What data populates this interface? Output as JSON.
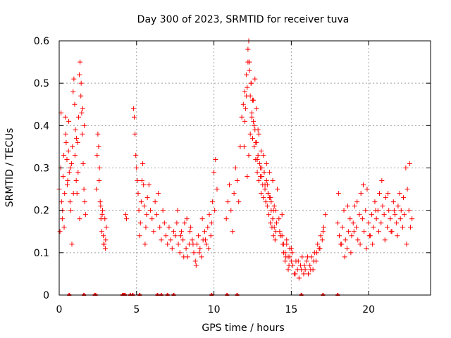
{
  "chart_data": {
    "type": "scatter",
    "title": "Day 300 of 2023, SRMTID for receiver tuva",
    "xlabel": "GPS time / hours",
    "ylabel": "SRMTID / TECUs",
    "xlim": [
      0,
      24
    ],
    "ylim": [
      0,
      0.6
    ],
    "x_ticks": [
      "0",
      "5",
      "10",
      "15",
      "20"
    ],
    "x_tick_values": [
      0,
      5,
      10,
      15,
      20
    ],
    "y_ticks": [
      "0",
      "0.1",
      "0.2",
      "0.3",
      "0.4",
      "0.5",
      "0.6"
    ],
    "y_tick_values": [
      0,
      0.1,
      0.2,
      0.3,
      0.4,
      0.5,
      0.6
    ],
    "grid": true,
    "marker": "plus",
    "color": "#ff0000",
    "series": [
      {
        "name": "SRMTID",
        "x": [
          0.0,
          0.1,
          0.15,
          0.2,
          0.25,
          0.3,
          0.35,
          0.4,
          0.45,
          0.5,
          0.55,
          0.6,
          0.65,
          0.7,
          0.75,
          0.8,
          0.85,
          0.9,
          0.95,
          1.0,
          1.05,
          1.1,
          1.15,
          1.2,
          1.25,
          1.3,
          1.35,
          1.4,
          1.45,
          1.5,
          1.55,
          1.6,
          1.65,
          1.7,
          0.05,
          0.12,
          0.22,
          0.32,
          0.42,
          0.52,
          0.62,
          0.72,
          0.82,
          0.92,
          1.02,
          1.12,
          1.22,
          1.32,
          1.42,
          1.52,
          1.62,
          2.4,
          2.5,
          2.55,
          2.6,
          2.65,
          2.7,
          2.75,
          2.8,
          2.85,
          2.9,
          2.95,
          3.0,
          3.05,
          2.45,
          2.58,
          2.68,
          2.78,
          2.88,
          2.98,
          4.3,
          4.35,
          4.8,
          4.85,
          4.9,
          4.95,
          5.0,
          5.05,
          5.1,
          5.15,
          5.2,
          5.25,
          5.3,
          5.35,
          5.4,
          5.45,
          5.5,
          5.55,
          5.6,
          5.65,
          5.7,
          5.8,
          5.9,
          6.0,
          6.1,
          6.2,
          6.3,
          6.4,
          6.5,
          6.6,
          6.7,
          6.8,
          6.9,
          7.0,
          7.1,
          7.2,
          7.3,
          7.4,
          7.5,
          7.6,
          7.7,
          7.8,
          7.9,
          8.0,
          8.1,
          8.2,
          8.3,
          8.4,
          8.5,
          8.6,
          8.7,
          8.8,
          8.9,
          9.0,
          9.1,
          9.2,
          9.3,
          9.4,
          9.5,
          9.6,
          9.7,
          9.8,
          9.9,
          10.0,
          10.1,
          10.2,
          7.65,
          7.85,
          8.05,
          8.25,
          8.45,
          8.65,
          8.85,
          9.05,
          9.25,
          9.45,
          9.65,
          9.85,
          10.05,
          10.8,
          10.9,
          11.0,
          11.1,
          11.2,
          11.3,
          11.4,
          11.5,
          11.6,
          11.7,
          11.8,
          11.9,
          12.0,
          12.1,
          12.2,
          12.3,
          12.4,
          12.5,
          12.6,
          12.7,
          12.8,
          12.9,
          13.0,
          13.1,
          13.2,
          13.3,
          13.4,
          13.5,
          13.6,
          13.7,
          13.8,
          13.9,
          14.0,
          14.1,
          14.2,
          14.3,
          14.4,
          14.5,
          14.6,
          14.7,
          14.8,
          14.9,
          15.0,
          11.95,
          12.0,
          12.05,
          12.1,
          12.15,
          12.2,
          12.25,
          12.3,
          12.35,
          12.4,
          12.45,
          12.5,
          12.55,
          12.6,
          12.65,
          12.7,
          12.75,
          12.8,
          12.85,
          12.9,
          12.95,
          13.0,
          13.05,
          13.1,
          13.15,
          13.2,
          13.25,
          13.3,
          13.35,
          13.4,
          13.45,
          13.5,
          13.55,
          13.6,
          13.65,
          13.7,
          13.75,
          13.8,
          13.85,
          13.9,
          13.95,
          14.0,
          12.15,
          12.25,
          12.35,
          12.45,
          12.55,
          12.65,
          12.75,
          12.85,
          13.05,
          13.25,
          13.45,
          13.65,
          13.85,
          14.05,
          14.25,
          14.4,
          14.5,
          14.6,
          14.7,
          14.8,
          14.9,
          15.0,
          15.1,
          15.2,
          15.3,
          15.4,
          15.5,
          15.6,
          15.7,
          15.8,
          15.9,
          16.0,
          16.1,
          16.2,
          16.3,
          16.4,
          16.5,
          16.6,
          16.7,
          16.8,
          16.9,
          17.0,
          17.1,
          17.2,
          14.45,
          14.65,
          14.85,
          15.05,
          15.25,
          15.45,
          15.65,
          15.85,
          16.05,
          16.25,
          16.45,
          16.65,
          16.85,
          17.05,
          18.0,
          18.1,
          18.2,
          18.3,
          18.4,
          18.5,
          18.6,
          18.7,
          18.8,
          18.9,
          19.0,
          19.1,
          19.2,
          19.3,
          19.4,
          19.5,
          19.6,
          19.7,
          19.8,
          19.9,
          20.0,
          20.1,
          20.2,
          20.3,
          20.4,
          20.5,
          20.6,
          20.7,
          20.8,
          20.9,
          21.0,
          21.1,
          21.2,
          21.3,
          21.4,
          21.5,
          21.6,
          21.7,
          21.8,
          21.9,
          22.0,
          22.1,
          22.2,
          22.3,
          22.4,
          22.5,
          22.6,
          22.7,
          22.8,
          18.05,
          18.25,
          18.45,
          18.65,
          18.85,
          19.05,
          19.25,
          19.45,
          19.65,
          19.85,
          20.05,
          20.25,
          20.45,
          20.65,
          20.85,
          21.05,
          21.25,
          21.45,
          21.65,
          21.85,
          22.05,
          22.25,
          22.45,
          22.65,
          0.65,
          1.6,
          2.3,
          2.35,
          4.1,
          4.15,
          4.2,
          4.25,
          4.6,
          4.75,
          5.2,
          6.35,
          6.6,
          7.0,
          7.4,
          9.85,
          10.85,
          11.5,
          15.65,
          17.05,
          18.0
        ],
        "y": [
          0.25,
          0.3,
          0.22,
          0.18,
          0.28,
          0.33,
          0.24,
          0.42,
          0.36,
          0.32,
          0.27,
          0.34,
          0.29,
          0.22,
          0.2,
          0.31,
          0.35,
          0.48,
          0.51,
          0.45,
          0.39,
          0.27,
          0.24,
          0.36,
          0.42,
          0.52,
          0.55,
          0.47,
          0.43,
          0.38,
          0.31,
          0.25,
          0.22,
          0.19,
          0.15,
          0.43,
          0.2,
          0.16,
          0.38,
          0.26,
          0.41,
          0.3,
          0.12,
          0.24,
          0.33,
          0.37,
          0.29,
          0.18,
          0.5,
          0.44,
          0.4,
          0.25,
          0.38,
          0.35,
          0.3,
          0.22,
          0.18,
          0.15,
          0.2,
          0.14,
          0.12,
          0.18,
          0.13,
          0.16,
          0.33,
          0.27,
          0.21,
          0.19,
          0.12,
          0.11,
          0.19,
          0.18,
          0.44,
          0.42,
          0.38,
          0.33,
          0.3,
          0.27,
          0.24,
          0.2,
          0.14,
          0.17,
          0.22,
          0.27,
          0.31,
          0.26,
          0.21,
          0.12,
          0.16,
          0.19,
          0.23,
          0.26,
          0.2,
          0.18,
          0.15,
          0.22,
          0.19,
          0.24,
          0.16,
          0.13,
          0.2,
          0.17,
          0.14,
          0.12,
          0.16,
          0.13,
          0.11,
          0.15,
          0.14,
          0.17,
          0.12,
          0.1,
          0.15,
          0.13,
          0.17,
          0.11,
          0.09,
          0.12,
          0.16,
          0.13,
          0.1,
          0.08,
          0.12,
          0.14,
          0.11,
          0.09,
          0.13,
          0.15,
          0.12,
          0.16,
          0.19,
          0.14,
          0.22,
          0.29,
          0.32,
          0.25,
          0.2,
          0.14,
          0.09,
          0.18,
          0.15,
          0.12,
          0.07,
          0.1,
          0.18,
          0.13,
          0.11,
          0.17,
          0.2,
          0.18,
          0.22,
          0.26,
          0.2,
          0.15,
          0.24,
          0.3,
          0.27,
          0.22,
          0.35,
          0.42,
          0.45,
          0.48,
          0.52,
          0.58,
          0.55,
          0.5,
          0.46,
          0.4,
          0.36,
          0.32,
          0.38,
          0.3,
          0.28,
          0.33,
          0.26,
          0.31,
          0.24,
          0.29,
          0.22,
          0.27,
          0.21,
          0.2,
          0.25,
          0.18,
          0.14,
          0.19,
          0.12,
          0.1,
          0.13,
          0.09,
          0.11,
          0.08,
          0.35,
          0.41,
          0.44,
          0.47,
          0.49,
          0.55,
          0.6,
          0.53,
          0.47,
          0.5,
          0.43,
          0.37,
          0.41,
          0.35,
          0.39,
          0.32,
          0.36,
          0.29,
          0.33,
          0.27,
          0.31,
          0.28,
          0.24,
          0.3,
          0.26,
          0.23,
          0.29,
          0.25,
          0.22,
          0.27,
          0.21,
          0.24,
          0.19,
          0.23,
          0.17,
          0.2,
          0.16,
          0.18,
          0.14,
          0.16,
          0.13,
          0.15,
          0.28,
          0.33,
          0.38,
          0.42,
          0.46,
          0.51,
          0.44,
          0.39,
          0.34,
          0.29,
          0.26,
          0.23,
          0.2,
          0.17,
          0.15,
          0.14,
          0.1,
          0.08,
          0.12,
          0.06,
          0.09,
          0.11,
          0.07,
          0.05,
          0.08,
          0.06,
          0.04,
          0.07,
          0.09,
          0.05,
          0.06,
          0.08,
          0.05,
          0.07,
          0.09,
          0.06,
          0.1,
          0.08,
          0.12,
          0.11,
          0.14,
          0.13,
          0.16,
          0.19,
          0.12,
          0.09,
          0.07,
          0.1,
          0.05,
          0.08,
          0.06,
          0.07,
          0.09,
          0.06,
          0.08,
          0.1,
          0.11,
          0.15,
          0.17,
          0.14,
          0.12,
          0.16,
          0.2,
          0.13,
          0.11,
          0.15,
          0.18,
          0.14,
          0.17,
          0.21,
          0.16,
          0.13,
          0.19,
          0.24,
          0.18,
          0.15,
          0.2,
          0.25,
          0.17,
          0.14,
          0.19,
          0.16,
          0.22,
          0.18,
          0.2,
          0.24,
          0.17,
          0.21,
          0.19,
          0.23,
          0.16,
          0.2,
          0.18,
          0.15,
          0.22,
          0.19,
          0.17,
          0.21,
          0.24,
          0.2,
          0.16,
          0.19,
          0.3,
          0.25,
          0.2,
          0.16,
          0.18,
          0.24,
          0.12,
          0.09,
          0.21,
          0.1,
          0.15,
          0.22,
          0.12,
          0.26,
          0.11,
          0.14,
          0.12,
          0.2,
          0.15,
          0.27,
          0.13,
          0.24,
          0.15,
          0.2,
          0.14,
          0.18,
          0.23,
          0.12,
          0.31,
          0,
          0,
          0,
          0,
          0,
          0,
          0,
          0,
          0,
          0,
          0,
          0,
          0,
          0,
          0,
          0,
          0,
          0,
          0,
          0,
          0
        ]
      }
    ]
  }
}
